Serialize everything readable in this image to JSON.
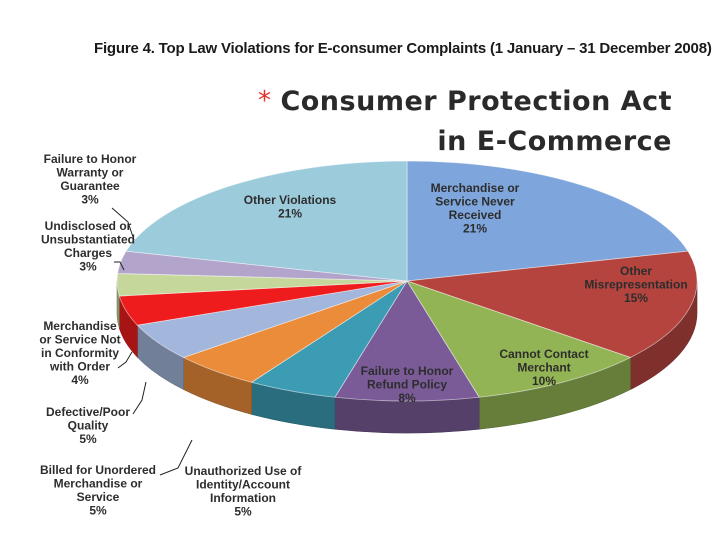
{
  "figure_title": "Figure 4. Top Law Violations for E-consumer Complaints (1 January – 31 December 2008)",
  "heading": {
    "bullet": "*",
    "line1": "Consumer Protection Act",
    "line2": "in E-Commerce"
  },
  "chart_data": {
    "type": "pie",
    "title": "Figure 4. Top Law Violations for E-consumer Complaints (1 January – 31 December 2008)",
    "unit": "%",
    "slices": [
      {
        "label": "Merchandise or Service Never Received",
        "value": 21,
        "value_label": "21%",
        "color": "#7ea6dc"
      },
      {
        "label": "Other Misrepresentation",
        "value": 15,
        "value_label": "15%",
        "color": "#b5443f"
      },
      {
        "label": "Cannot Contact Merchant",
        "value": 10,
        "value_label": "10%",
        "color": "#93b455"
      },
      {
        "label": "Failure to Honor Refund Policy",
        "value": 8,
        "value_label": "8%",
        "color": "#7a5b98"
      },
      {
        "label": "Unauthorized Use of Identity/Account Information",
        "value": 5,
        "value_label": "5%",
        "color": "#3b9cb4"
      },
      {
        "label": "Billed for Unordered Merchandise or Service",
        "value": 5,
        "value_label": "5%",
        "color": "#ea8c3a"
      },
      {
        "label": "Defective/Poor Quality",
        "value": 5,
        "value_label": "5%",
        "color": "#a3b6db"
      },
      {
        "label": "Merchandise or Service Not in Conformity with Order",
        "value": 4,
        "value_label": "4%",
        "color": "#ee1c1c"
      },
      {
        "label": "Undisclosed or Unsubstantiated Charges",
        "value": 3,
        "value_label": "3%",
        "color": "#c6d79c"
      },
      {
        "label": "Failure to Honor Warranty or Guarantee",
        "value": 3,
        "value_label": "3%",
        "color": "#b3a4cc"
      },
      {
        "label": "Other Violations",
        "value": 21,
        "value_label": "21%",
        "color": "#9ccbdb"
      }
    ],
    "labels": [
      {
        "lines": [
          "Merchandise or",
          "Service Never",
          "Received",
          "21%"
        ]
      },
      {
        "lines": [
          "Other",
          "Misrepresentation",
          "15%"
        ]
      },
      {
        "lines": [
          "Cannot Contact",
          "Merchant",
          "10%"
        ]
      },
      {
        "lines": [
          "Failure to Honor",
          "Refund Policy",
          "8%"
        ]
      },
      {
        "lines": [
          "Unauthorized Use of",
          "Identity/Account",
          "Information",
          "5%"
        ]
      },
      {
        "lines": [
          "Billed for Unordered",
          "Merchandise or",
          "Service",
          "5%"
        ]
      },
      {
        "lines": [
          "Defective/Poor",
          "Quality",
          "5%"
        ]
      },
      {
        "lines": [
          "Merchandise",
          "or Service Not",
          "in Conformity",
          "with Order",
          "4%"
        ]
      },
      {
        "lines": [
          "Undisclosed or",
          "Unsubstantiated",
          "Charges",
          "3%"
        ]
      },
      {
        "lines": [
          "Failure to Honor",
          "Warranty or",
          "Guarantee",
          "3%"
        ]
      },
      {
        "lines": [
          "Other Violations",
          "21%"
        ]
      }
    ]
  }
}
